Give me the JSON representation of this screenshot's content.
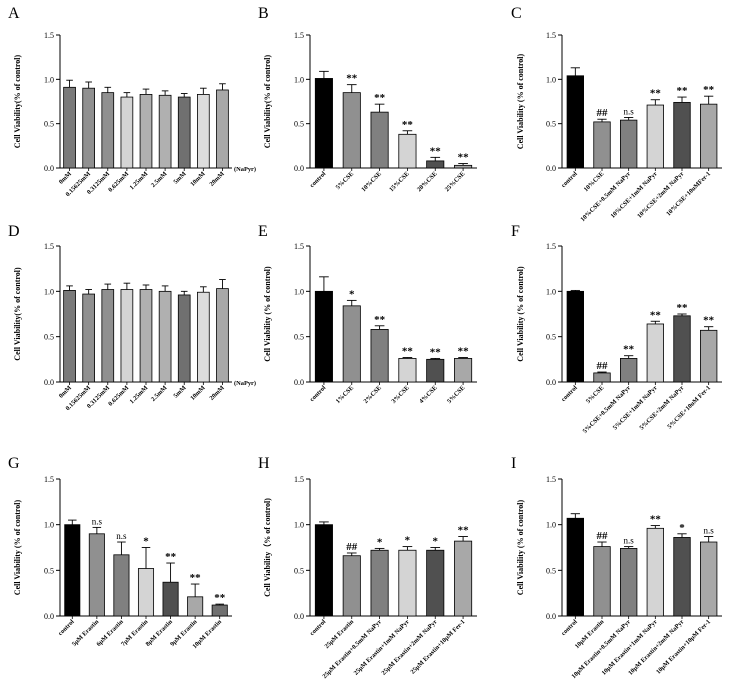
{
  "chart_data": [
    {
      "panel": "A",
      "type": "bar",
      "ylabel": "Cell Viability(% of control)",
      "ylim": [
        0,
        1.5
      ],
      "yticks": [
        "0.0",
        "0.5",
        "1.0",
        "1.5"
      ],
      "categories": [
        "0mM",
        "0.15625mM",
        "0.3125mM",
        "0.625mM",
        "1.25mM",
        "2.5mM",
        "5mM",
        "10mM",
        "20mM"
      ],
      "values": [
        0.91,
        0.9,
        0.85,
        0.8,
        0.83,
        0.82,
        0.8,
        0.83,
        0.88
      ],
      "errors": [
        0.08,
        0.07,
        0.06,
        0.05,
        0.06,
        0.05,
        0.04,
        0.07,
        0.07
      ],
      "colors": [
        "#7a7a7a",
        "#909090",
        "#909090",
        "#d4d4d4",
        "#b0b0b0",
        "#b0b0b0",
        "#707070",
        "#dcdcdc",
        "#a8a8a8"
      ],
      "significance": [
        "",
        "",
        "",
        "",
        "",
        "",
        "",
        "",
        ""
      ],
      "axis_unit": "(NaPyr)"
    },
    {
      "panel": "B",
      "type": "bar",
      "ylabel": "Cell Viability(% of control)",
      "ylim": [
        0,
        1.5
      ],
      "yticks": [
        "0.0",
        "0.5",
        "1.0",
        "1.5"
      ],
      "categories": [
        "control",
        "5%CSE",
        "10%CSE",
        "15%CSE",
        "20%CSE",
        "25%CSE"
      ],
      "values": [
        1.01,
        0.85,
        0.63,
        0.38,
        0.08,
        0.03
      ],
      "errors": [
        0.08,
        0.09,
        0.09,
        0.04,
        0.04,
        0.02
      ],
      "colors": [
        "#000000",
        "#909090",
        "#808080",
        "#d4d4d4",
        "#505050",
        "#a8a8a8"
      ],
      "significance": [
        "",
        "**",
        "**",
        "**",
        "**",
        "**"
      ]
    },
    {
      "panel": "C",
      "type": "bar",
      "ylabel": "Cell Viability (% of control)",
      "ylim": [
        0,
        1.5
      ],
      "yticks": [
        "0.0",
        "0.5",
        "1.0",
        "1.5"
      ],
      "categories": [
        "control",
        "10%CSE",
        "10%CSE+0.5mM NaPyr",
        "10%CSE+1mM NaPyr",
        "10%CSE+2mM NaPyr",
        "10%CSE+10uMFer-1"
      ],
      "values": [
        1.04,
        0.52,
        0.54,
        0.71,
        0.74,
        0.72
      ],
      "errors": [
        0.09,
        0.03,
        0.03,
        0.06,
        0.06,
        0.09
      ],
      "colors": [
        "#000000",
        "#909090",
        "#808080",
        "#d4d4d4",
        "#505050",
        "#a8a8a8"
      ],
      "significance": [
        "",
        "##",
        "n.s",
        "**",
        "**",
        "**"
      ]
    },
    {
      "panel": "D",
      "type": "bar",
      "ylabel": "Cell Viability(% of control)",
      "ylim": [
        0,
        1.5
      ],
      "yticks": [
        "0.0",
        "0.5",
        "1.0",
        "1.5"
      ],
      "categories": [
        "0mM",
        "0.15625mM",
        "0.3125mM",
        "0.625mM",
        "1.25mM",
        "2.5mM",
        "5mM",
        "10mM",
        "20mM"
      ],
      "values": [
        1.01,
        0.97,
        1.02,
        1.02,
        1.02,
        1.0,
        0.96,
        0.99,
        1.03
      ],
      "errors": [
        0.05,
        0.05,
        0.06,
        0.07,
        0.05,
        0.06,
        0.04,
        0.06,
        0.1
      ],
      "colors": [
        "#7a7a7a",
        "#909090",
        "#909090",
        "#d4d4d4",
        "#b0b0b0",
        "#b0b0b0",
        "#707070",
        "#dcdcdc",
        "#a8a8a8"
      ],
      "significance": [
        "",
        "",
        "",
        "",
        "",
        "",
        "",
        "",
        ""
      ],
      "axis_unit": "(NaPyr)"
    },
    {
      "panel": "E",
      "type": "bar",
      "ylabel": "Cell Viability (% of control)",
      "ylim": [
        0,
        1.5
      ],
      "yticks": [
        "0.0",
        "0.5",
        "1.0",
        "1.5"
      ],
      "categories": [
        "control",
        "1%CSE",
        "2%CSE",
        "3%CSE",
        "4%CSE",
        "5%CSE"
      ],
      "values": [
        1.0,
        0.84,
        0.58,
        0.26,
        0.25,
        0.26
      ],
      "errors": [
        0.16,
        0.06,
        0.04,
        0.01,
        0.01,
        0.01
      ],
      "colors": [
        "#000000",
        "#909090",
        "#808080",
        "#d4d4d4",
        "#505050",
        "#a8a8a8"
      ],
      "significance": [
        "",
        "*",
        "**",
        "**",
        "**",
        "**"
      ]
    },
    {
      "panel": "F",
      "type": "bar",
      "ylabel": "Cell Viability (% of control)",
      "ylim": [
        0,
        1.5
      ],
      "yticks": [
        "0.0",
        "0.5",
        "1.0",
        "1.5"
      ],
      "categories": [
        "control",
        "5%CSE",
        "5%CSE+0.5mM NaPyr",
        "5%CSE+1mM NaPyr",
        "5%CSE+2mM NaPyr",
        "5%CSE+10uM Fer-1"
      ],
      "values": [
        1.0,
        0.1,
        0.26,
        0.64,
        0.73,
        0.57
      ],
      "errors": [
        0.01,
        0.01,
        0.03,
        0.03,
        0.02,
        0.04
      ],
      "colors": [
        "#000000",
        "#909090",
        "#808080",
        "#d4d4d4",
        "#505050",
        "#a8a8a8"
      ],
      "significance": [
        "",
        "##",
        "**",
        "**",
        "**",
        "**"
      ]
    },
    {
      "panel": "G",
      "type": "bar",
      "ylabel": "Cell Viability (% of control)",
      "ylim": [
        0,
        1.5
      ],
      "yticks": [
        "0.0",
        "0.5",
        "1.0",
        "1.5"
      ],
      "categories": [
        "control",
        "5μM Erastin",
        "6μM Erastin",
        "7μM Erastin",
        "8μM Erastin",
        "9μM Erastin",
        "10μM Erastin"
      ],
      "values": [
        1.0,
        0.9,
        0.67,
        0.52,
        0.37,
        0.21,
        0.12
      ],
      "errors": [
        0.05,
        0.07,
        0.14,
        0.23,
        0.21,
        0.14,
        0.01
      ],
      "colors": [
        "#000000",
        "#909090",
        "#808080",
        "#d4d4d4",
        "#505050",
        "#a8a8a8",
        "#707070"
      ],
      "significance": [
        "",
        "n.s",
        "n.s",
        "*",
        "**",
        "**",
        "**"
      ]
    },
    {
      "panel": "H",
      "type": "bar",
      "ylabel": "Cell Viability（% of control)",
      "ylim": [
        0,
        1.5
      ],
      "yticks": [
        "0.0",
        "0.5",
        "1.0",
        "1.5"
      ],
      "categories": [
        "control",
        "25μM Erastin",
        "25μM Erastin+0.5mM NaPyr",
        "25μM Erastin+1mM NaPyr",
        "25μM Erastin+2mM NaPyr",
        "25μM Erastin+10μM Fer-1"
      ],
      "values": [
        1.0,
        0.66,
        0.72,
        0.72,
        0.72,
        0.82
      ],
      "errors": [
        0.03,
        0.03,
        0.02,
        0.04,
        0.03,
        0.05
      ],
      "colors": [
        "#000000",
        "#909090",
        "#808080",
        "#d4d4d4",
        "#505050",
        "#a8a8a8"
      ],
      "significance": [
        "",
        "##",
        "*",
        "*",
        "*",
        "**"
      ]
    },
    {
      "panel": "I",
      "type": "bar",
      "ylabel": "Cell Viability (% of control)",
      "ylim": [
        0,
        1.5
      ],
      "yticks": [
        "0.0",
        "0.5",
        "1.0",
        "1.5"
      ],
      "categories": [
        "control",
        "10μM Erastin",
        "10μM Erastin+0.5mM NaPyr",
        "10μM Erastin+1mM NaPyr",
        "10μM Erastin+2mM NaPyr",
        "10μM Erastin+10μM Fer-1"
      ],
      "values": [
        1.07,
        0.76,
        0.74,
        0.96,
        0.86,
        0.81
      ],
      "errors": [
        0.05,
        0.05,
        0.02,
        0.03,
        0.04,
        0.06
      ],
      "colors": [
        "#000000",
        "#909090",
        "#808080",
        "#d4d4d4",
        "#505050",
        "#a8a8a8"
      ],
      "significance": [
        "",
        "##",
        "n.s",
        "**",
        "*",
        "n.s"
      ]
    }
  ]
}
